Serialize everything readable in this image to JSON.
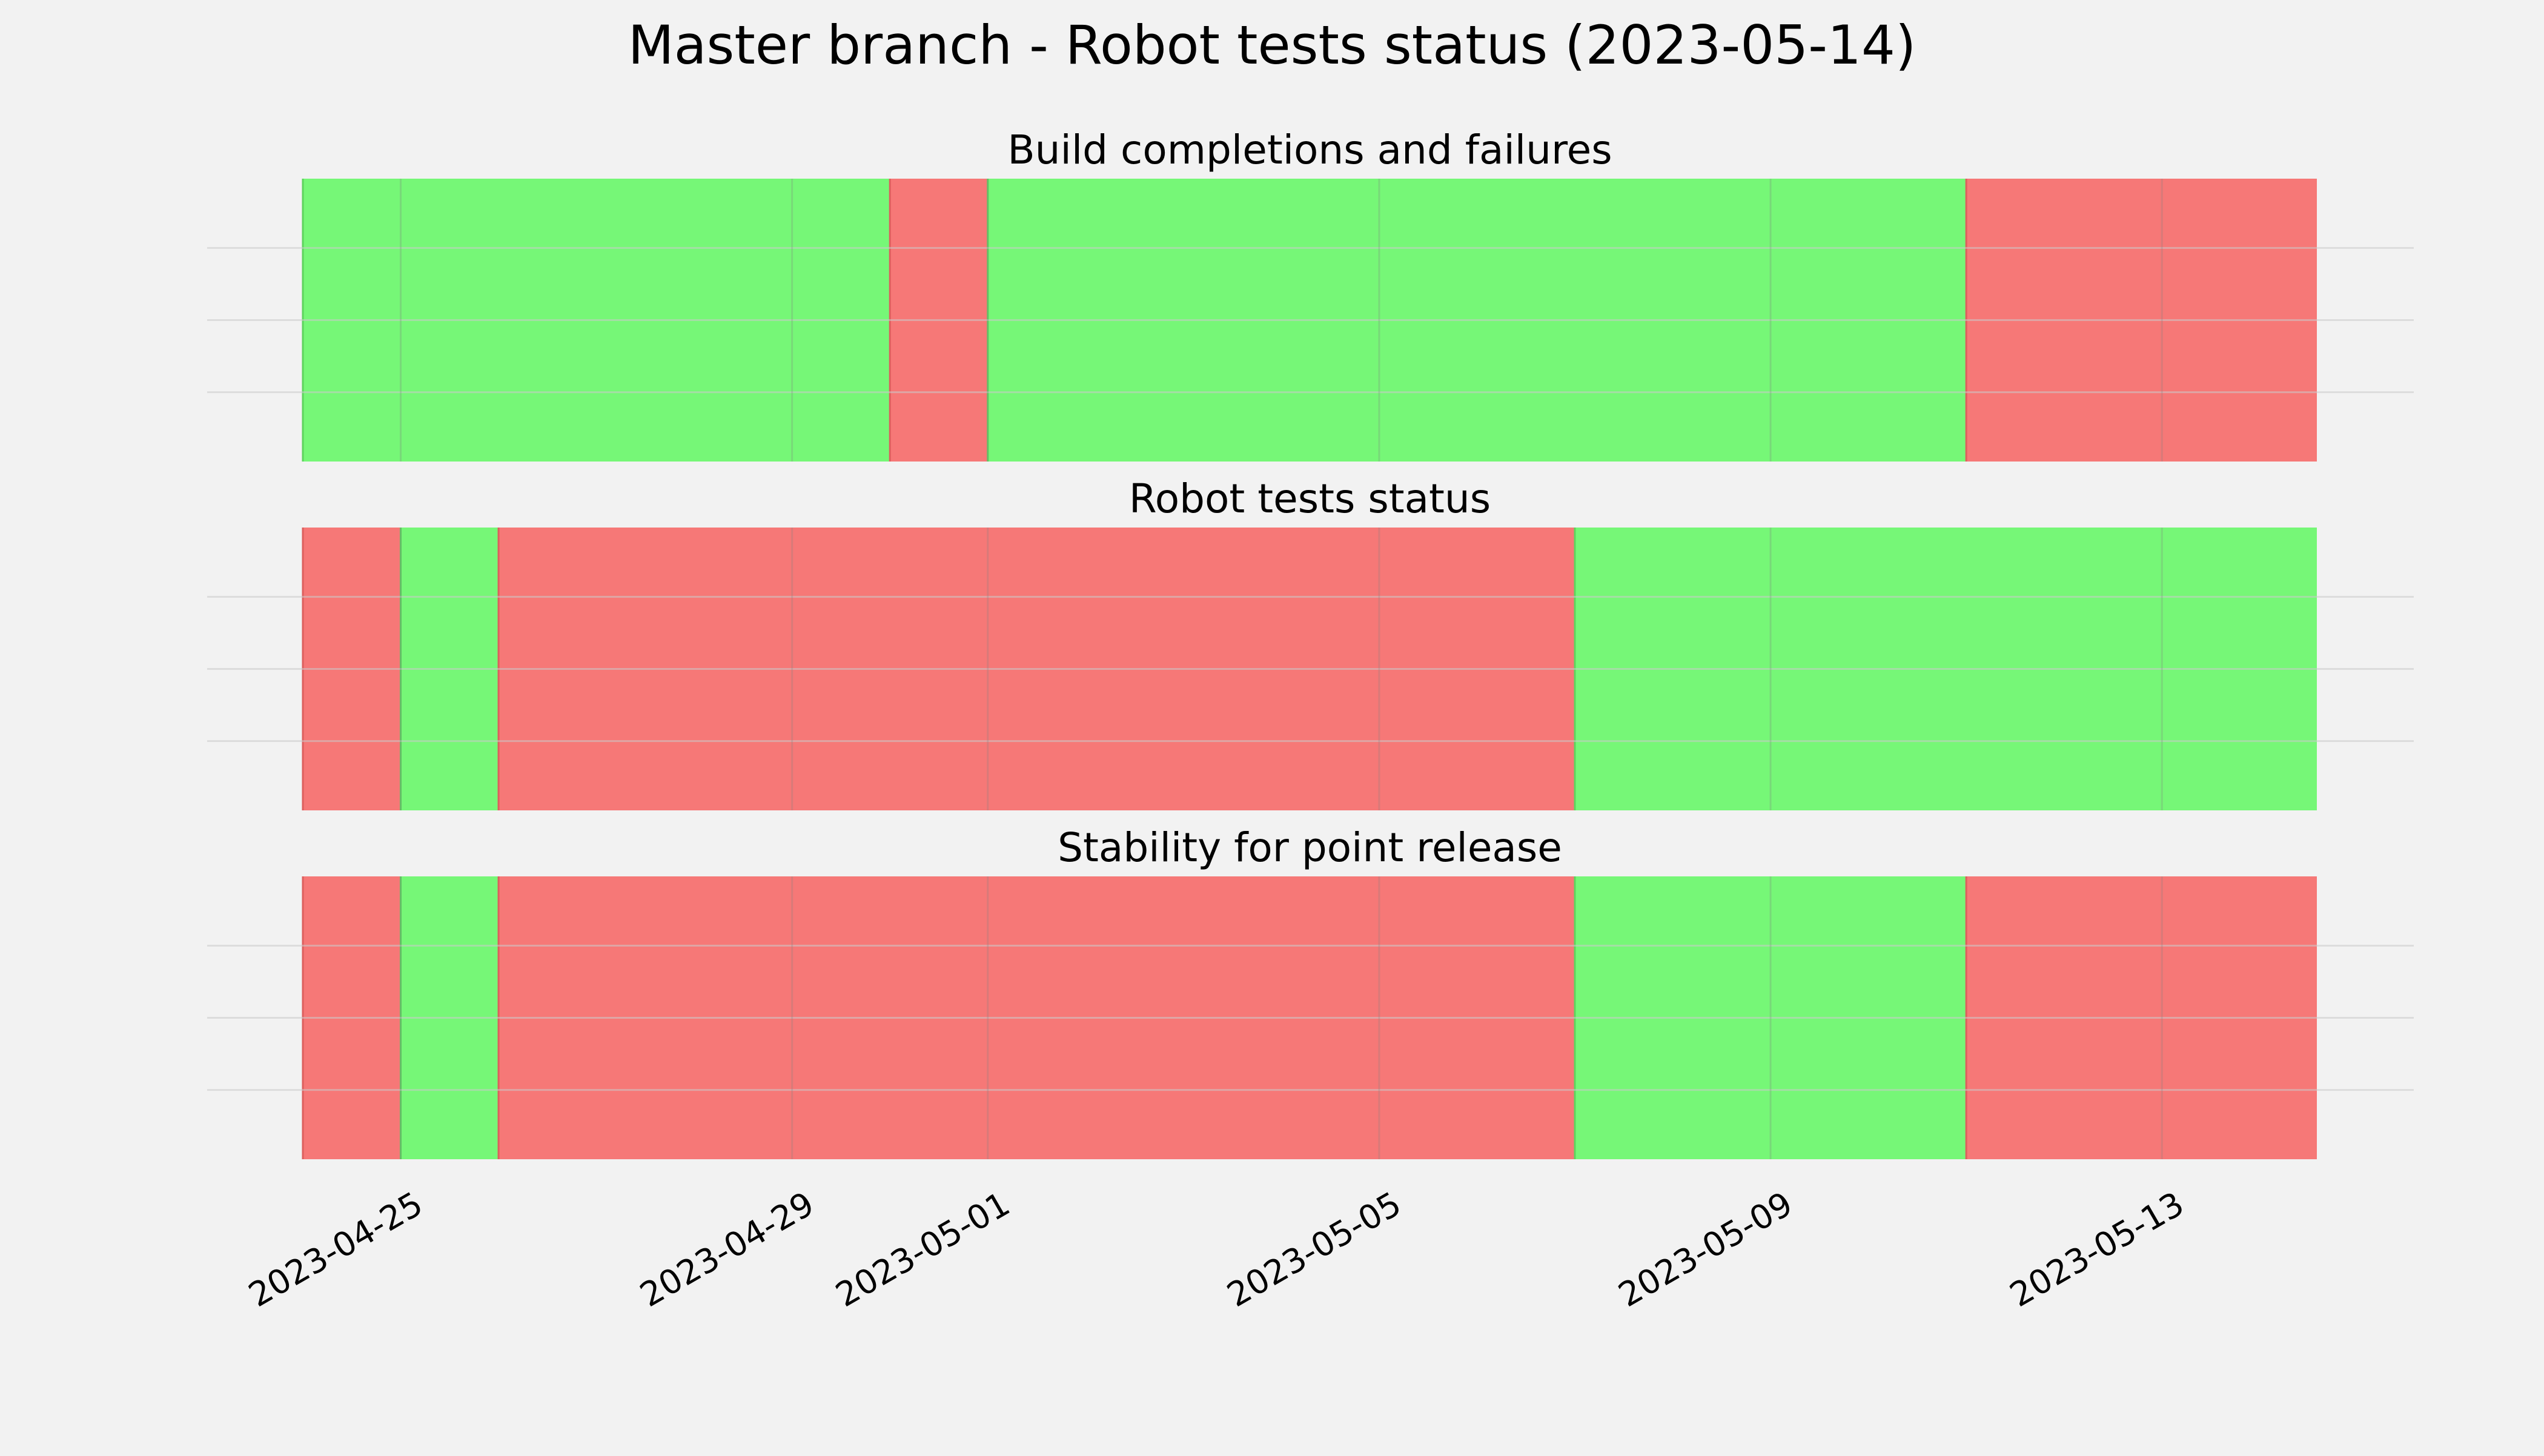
{
  "title": "Master branch - Robot tests status (2023-05-14)",
  "colors": {
    "background": "#f2f2f2",
    "pass": "#76f777",
    "fail": "#f67877",
    "grid": "#cbcbcb",
    "text": "#000000"
  },
  "chart_data": [
    {
      "type": "timeline",
      "title": "Build completions and failures",
      "grid": true,
      "xlim": [
        "2023-04-24",
        "2023-05-14T14:00"
      ],
      "xticks": [
        "2023-04-25",
        "2023-04-29",
        "2023-05-01",
        "2023-05-05",
        "2023-05-09",
        "2023-05-13"
      ],
      "segments": [
        {
          "start": "2023-04-24",
          "end": "2023-04-30",
          "status": "pass"
        },
        {
          "start": "2023-04-30",
          "end": "2023-05-01",
          "status": "fail"
        },
        {
          "start": "2023-05-01",
          "end": "2023-05-11",
          "status": "pass"
        },
        {
          "start": "2023-05-11",
          "end": "2023-05-14T14:00",
          "status": "fail"
        }
      ]
    },
    {
      "type": "timeline",
      "title": "Robot tests status",
      "grid": true,
      "xlim": [
        "2023-04-24",
        "2023-05-14T14:00"
      ],
      "xticks": [
        "2023-04-25",
        "2023-04-29",
        "2023-05-01",
        "2023-05-05",
        "2023-05-09",
        "2023-05-13"
      ],
      "segments": [
        {
          "start": "2023-04-24",
          "end": "2023-04-25",
          "status": "fail"
        },
        {
          "start": "2023-04-25",
          "end": "2023-04-26",
          "status": "pass"
        },
        {
          "start": "2023-04-26",
          "end": "2023-05-07",
          "status": "fail"
        },
        {
          "start": "2023-05-07",
          "end": "2023-05-14T14:00",
          "status": "pass"
        }
      ]
    },
    {
      "type": "timeline",
      "title": "Stability for point release",
      "grid": true,
      "xlim": [
        "2023-04-24",
        "2023-05-14T14:00"
      ],
      "xticks": [
        "2023-04-25",
        "2023-04-29",
        "2023-05-01",
        "2023-05-05",
        "2023-05-09",
        "2023-05-13"
      ],
      "segments": [
        {
          "start": "2023-04-24",
          "end": "2023-04-25",
          "status": "fail"
        },
        {
          "start": "2023-04-25",
          "end": "2023-04-26",
          "status": "pass"
        },
        {
          "start": "2023-04-26",
          "end": "2023-05-07",
          "status": "fail"
        },
        {
          "start": "2023-05-07",
          "end": "2023-05-11",
          "status": "pass"
        },
        {
          "start": "2023-05-11",
          "end": "2023-05-14T14:00",
          "status": "fail"
        }
      ]
    }
  ]
}
